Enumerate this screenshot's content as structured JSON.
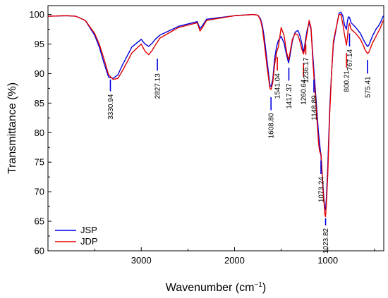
{
  "chart_data": {
    "type": "line",
    "xlabel": "Wavenumber (cm⁻¹)",
    "xlabel_main": "Wavenumber (cm",
    "xlabel_sup": "−1",
    "xlabel_close": ")",
    "ylabel": "Transmittance (%)",
    "xlim": [
      4000,
      400
    ],
    "ylim": [
      60,
      101.5
    ],
    "x_reversed": true,
    "grid": false,
    "legend_position": "bottom-left",
    "x_ticks": [
      3000,
      2000,
      1000
    ],
    "y_ticks": [
      60,
      65,
      70,
      75,
      80,
      85,
      90,
      95,
      100
    ],
    "colors": {
      "JSP": "#0000e0",
      "JDP": "#e00000"
    },
    "series": [
      {
        "name": "JSP",
        "x": [
          4000,
          3800,
          3700,
          3600,
          3500,
          3450,
          3400,
          3350,
          3300,
          3250,
          3200,
          3100,
          3000,
          2960,
          2920,
          2880,
          2850,
          2800,
          2600,
          2400,
          2370,
          2340,
          2300,
          2000,
          1800,
          1750,
          1720,
          1700,
          1680,
          1650,
          1620,
          1608,
          1590,
          1570,
          1550,
          1530,
          1500,
          1470,
          1440,
          1420,
          1400,
          1380,
          1350,
          1320,
          1300,
          1280,
          1261,
          1250,
          1236,
          1220,
          1200,
          1180,
          1160,
          1149,
          1130,
          1100,
          1090,
          1080,
          1073,
          1065,
          1050,
          1040,
          1030,
          1024,
          1015,
          1000,
          990,
          980,
          960,
          940,
          900,
          880,
          860,
          840,
          820,
          800,
          790,
          780,
          767,
          750,
          700,
          650,
          620,
          600,
          575,
          560,
          540,
          520,
          500,
          480,
          460,
          440,
          420,
          410,
          400
        ],
        "y": [
          99.7,
          99.8,
          99.7,
          99.0,
          96.5,
          94.5,
          91.8,
          89.4,
          89.2,
          89.8,
          91.5,
          94.5,
          95.8,
          95.0,
          94.6,
          95.2,
          95.8,
          96.5,
          98.0,
          98.8,
          97.6,
          98.2,
          99.2,
          99.8,
          100.0,
          99.9,
          99.2,
          98.0,
          96.0,
          92.0,
          88.0,
          87.8,
          89.0,
          92.5,
          94.5,
          95.6,
          96.3,
          95.2,
          93.0,
          91.8,
          93.5,
          95.5,
          97.0,
          97.3,
          96.5,
          95.2,
          93.6,
          94.5,
          96.0,
          97.5,
          98.6,
          97.5,
          93.0,
          90.5,
          86.5,
          80.0,
          78.5,
          77.0,
          76.0,
          74.0,
          70.5,
          68.5,
          67.0,
          67.0,
          69.0,
          74.5,
          79.0,
          84.0,
          90.0,
          95.0,
          98.5,
          100.2,
          100.4,
          99.8,
          98.2,
          97.5,
          98.8,
          99.6,
          99.5,
          98.6,
          97.8,
          96.8,
          95.8,
          95.2,
          94.6,
          94.8,
          95.6,
          96.4,
          97.0,
          97.6,
          98.0,
          98.5,
          99.2,
          99.6,
          99.8
        ]
      },
      {
        "name": "JDP",
        "x": [
          4000,
          3800,
          3700,
          3600,
          3500,
          3450,
          3400,
          3350,
          3300,
          3250,
          3200,
          3100,
          3000,
          2960,
          2920,
          2880,
          2850,
          2800,
          2600,
          2400,
          2370,
          2340,
          2300,
          2000,
          1800,
          1750,
          1720,
          1700,
          1680,
          1650,
          1620,
          1608,
          1590,
          1570,
          1550,
          1541,
          1530,
          1500,
          1470,
          1440,
          1420,
          1400,
          1380,
          1350,
          1320,
          1300,
          1280,
          1261,
          1250,
          1236,
          1220,
          1200,
          1180,
          1160,
          1149,
          1130,
          1100,
          1090,
          1080,
          1073,
          1065,
          1050,
          1040,
          1030,
          1024,
          1015,
          1000,
          990,
          980,
          960,
          940,
          900,
          880,
          860,
          840,
          820,
          800,
          790,
          780,
          767,
          750,
          700,
          650,
          620,
          600,
          575,
          560,
          540,
          520,
          500,
          480,
          460,
          440,
          420,
          410,
          400
        ],
        "y": [
          99.7,
          99.8,
          99.7,
          99.0,
          96.8,
          95.0,
          92.5,
          89.8,
          89.0,
          89.2,
          90.5,
          93.5,
          95.0,
          93.8,
          93.2,
          94.0,
          94.8,
          96.0,
          97.8,
          98.6,
          97.2,
          97.9,
          99.0,
          99.8,
          100.0,
          99.9,
          99.0,
          97.5,
          95.0,
          91.0,
          87.5,
          87.3,
          88.5,
          91.5,
          93.5,
          94.0,
          94.5,
          97.8,
          96.5,
          93.5,
          92.3,
          94.0,
          95.8,
          96.8,
          96.5,
          95.5,
          94.2,
          93.3,
          94.0,
          95.5,
          97.0,
          99.0,
          97.8,
          92.0,
          89.5,
          85.5,
          78.5,
          77.0,
          76.5,
          76.5,
          74.5,
          70.0,
          68.0,
          66.0,
          65.8,
          68.0,
          73.0,
          78.0,
          83.0,
          90.0,
          95.5,
          98.5,
          100.0,
          100.0,
          98.5,
          96.5,
          94.8,
          96.0,
          97.8,
          98.5,
          97.5,
          96.8,
          95.8,
          94.8,
          94.0,
          93.4,
          93.6,
          94.4,
          95.2,
          95.8,
          96.4,
          97.0,
          97.6,
          98.4,
          98.8,
          99.0
        ]
      }
    ],
    "peak_annotations": [
      {
        "label": "3330.94",
        "x": 3330.94,
        "color": "#0000e0",
        "tick_top": 89.0,
        "tick_bottom": 87.0
      },
      {
        "label": "2827.13",
        "x": 2827.13,
        "color": "#0000e0",
        "tick_top": 92.5,
        "tick_bottom": 90.5
      },
      {
        "label": "1608.80",
        "x": 1608.8,
        "color": "#0000e0",
        "tick_top": 86.0,
        "tick_bottom": 83.8
      },
      {
        "label": "1541.04",
        "x": 1541.04,
        "color": "#e00000",
        "tick_top": 92.8,
        "tick_bottom": 90.5
      },
      {
        "label": "1417.37",
        "x": 1417.37,
        "color": "#0000e0",
        "tick_top": 91.0,
        "tick_bottom": 88.8
      },
      {
        "label": "1260.64",
        "x": 1260.64,
        "color": "#e00000",
        "tick_top": 91.8,
        "tick_bottom": 89.5
      },
      {
        "label": "1236.17",
        "x": 1236.17,
        "color": "#e00000",
        "tick_top": 95.0,
        "tick_bottom": 93.2
      },
      {
        "label": "1148.89",
        "x": 1148.89,
        "color": "#0000e0",
        "tick_top": 89.0,
        "tick_bottom": 86.8
      },
      {
        "label": "1073.24",
        "x": 1073.24,
        "color": "#0000e0",
        "tick_top": 75.3,
        "tick_bottom": 73.0
      },
      {
        "label": "1023.82",
        "x": 1023.82,
        "color": "#0000e0",
        "tick_top": 65.5,
        "tick_bottom": 64.3
      },
      {
        "label": "800.21",
        "x": 800.21,
        "color": "#e00000",
        "tick_top": 93.5,
        "tick_bottom": 91.0
      },
      {
        "label": "767.14",
        "x": 767.14,
        "color": "#0000e0",
        "tick_top": 96.8,
        "tick_bottom": 94.6
      },
      {
        "label": "575.41",
        "x": 575.41,
        "color": "#0000e0",
        "tick_top": 92.3,
        "tick_bottom": 90.0
      }
    ],
    "legend": [
      {
        "name": "JSP",
        "color": "#0000e0"
      },
      {
        "name": "JDP",
        "color": "#e00000"
      }
    ]
  }
}
